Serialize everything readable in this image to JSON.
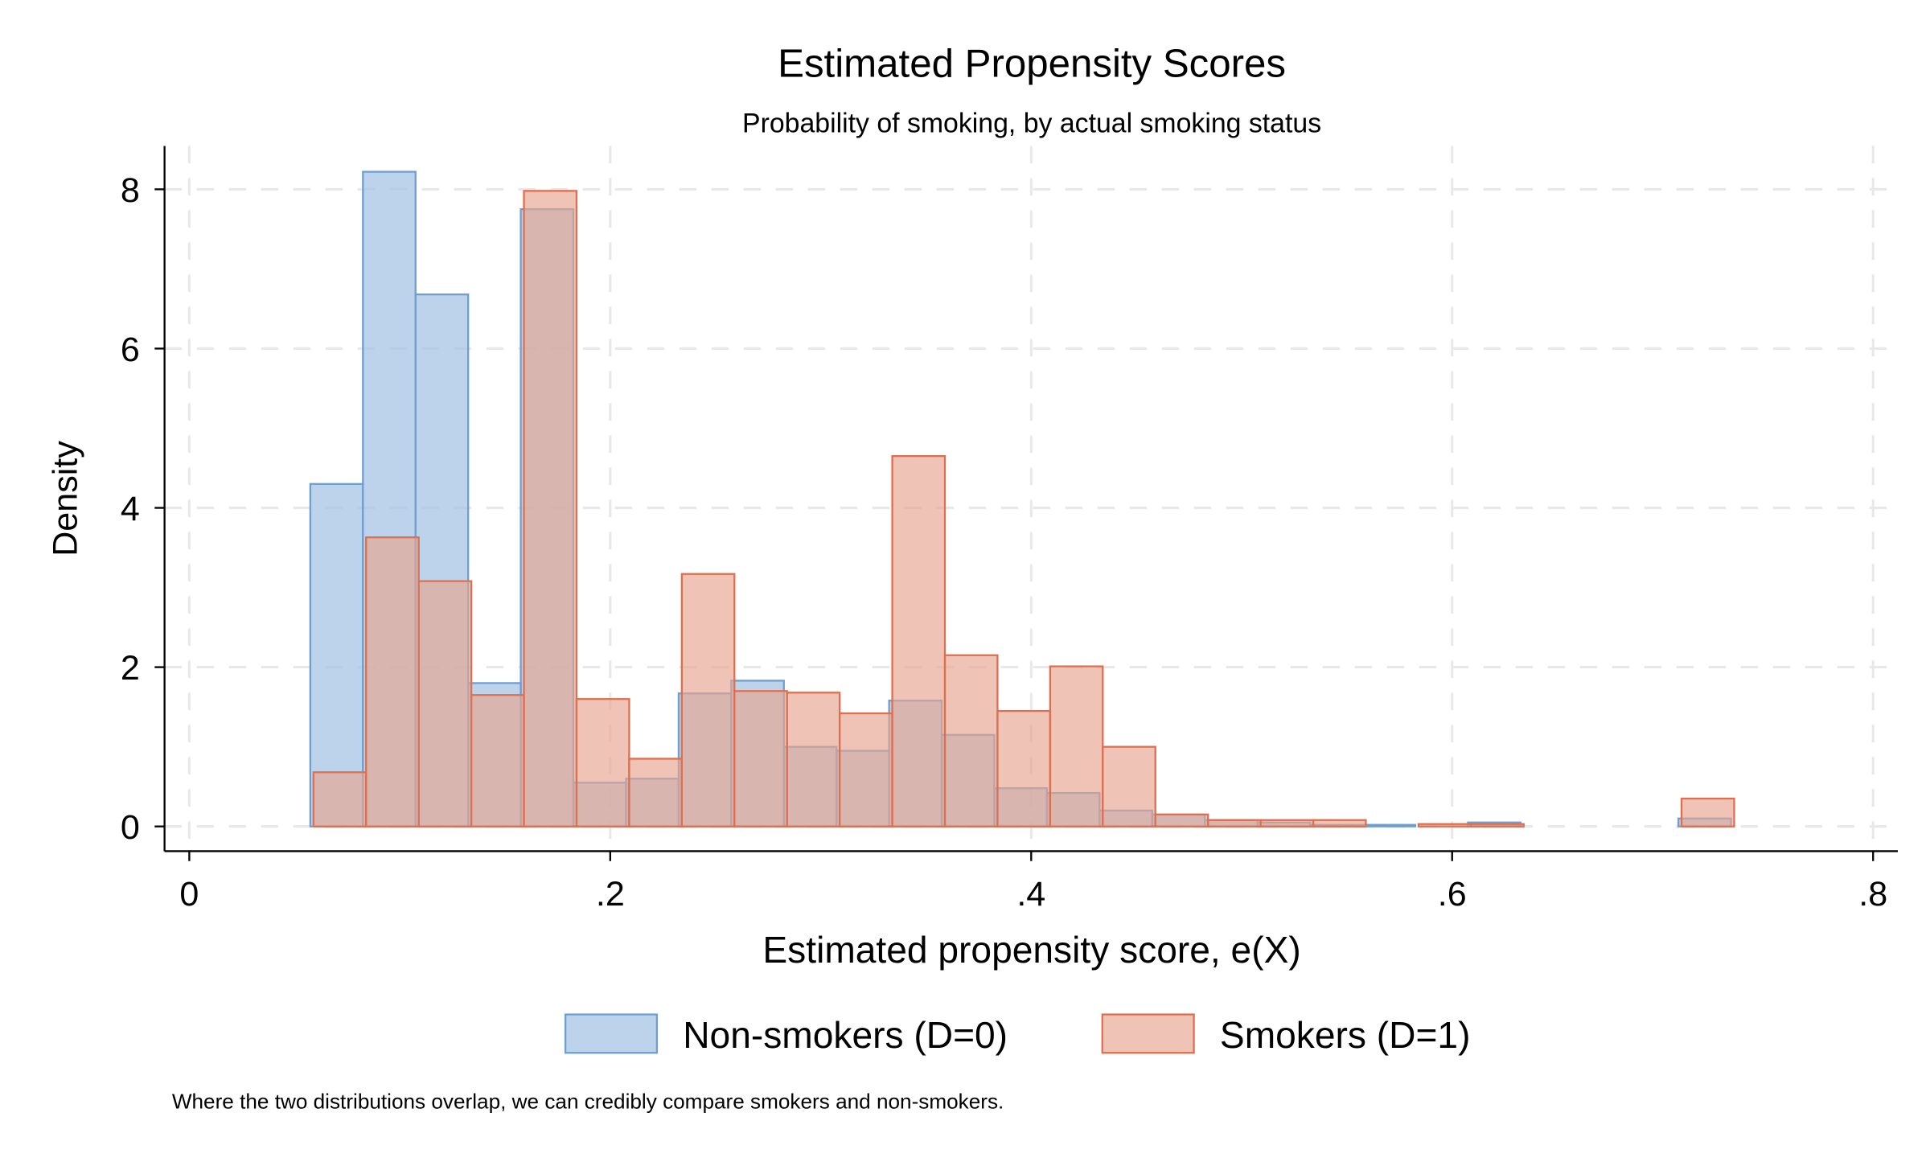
{
  "chart_data": {
    "type": "histogram",
    "title": "Estimated Propensity Scores",
    "subtitle": "Probability of smoking, by actual smoking status",
    "xlabel": "Estimated propensity score, e(X)",
    "ylabel": "Density",
    "xlim": [
      0,
      0.8
    ],
    "ylim": [
      0,
      8.5
    ],
    "xticks": [
      0,
      0.2,
      0.4,
      0.6,
      0.8
    ],
    "xtick_labels": [
      "0",
      ".2",
      ".4",
      ".6",
      ".8"
    ],
    "yticks": [
      0,
      2,
      4,
      6,
      8
    ],
    "ytick_labels": [
      "0",
      "2",
      "4",
      "6",
      "8"
    ],
    "grid": true,
    "legend_position": "bottom",
    "series": [
      {
        "name": "Non-smokers (D=0)",
        "color": "#6f9fd1",
        "fill": "#a7c4e4",
        "bin_start": 0.0575,
        "bin_width": 0.025,
        "values": [
          4.3,
          8.22,
          6.68,
          1.8,
          7.75,
          0.55,
          0.6,
          1.67,
          1.83,
          1.0,
          0.95,
          1.58,
          1.15,
          0.48,
          0.42,
          0.2,
          0.15,
          0.08,
          0.05,
          0.02,
          0.02,
          0,
          0.05,
          0,
          0,
          0,
          0.1
        ]
      },
      {
        "name": "Smokers (D=1)",
        "color": "#de7050",
        "fill": "#e6a48f",
        "bin_start": 0.059,
        "bin_width": 0.025,
        "values": [
          0.68,
          3.63,
          3.08,
          1.65,
          7.98,
          1.6,
          0.85,
          3.17,
          1.7,
          1.68,
          1.42,
          4.65,
          2.15,
          1.45,
          2.01,
          1.0,
          0.15,
          0.08,
          0.08,
          0.08,
          0,
          0.03,
          0.03,
          0,
          0,
          0,
          0.35
        ]
      }
    ],
    "note": "Where the two distributions overlap, we can credibly compare smokers and non-smokers."
  }
}
